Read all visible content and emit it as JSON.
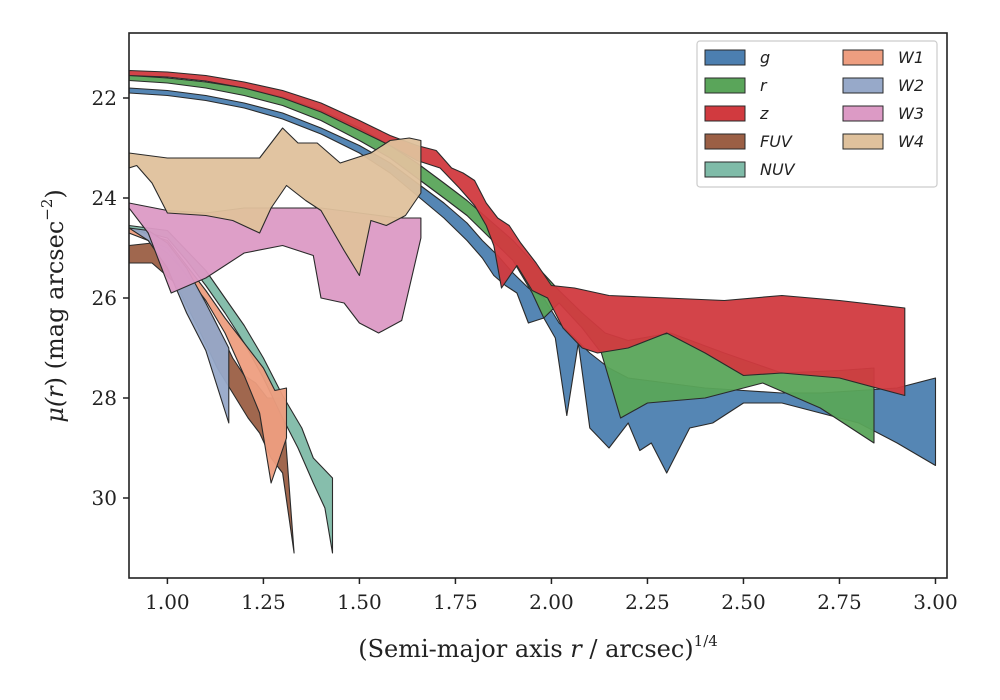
{
  "chart_data": {
    "type": "area",
    "xlabel_main": "(Semi-major axis ",
    "xlabel_var": "r",
    "xlabel_rest": " / arcsec)",
    "xlabel_exp": "1/4",
    "ylabel_main": "μ(",
    "ylabel_var": "r",
    "ylabel_rest": ") (mag arcsec",
    "ylabel_exp": "−2",
    "ylabel_close": ")",
    "xlim": [
      0.9,
      3.03
    ],
    "ylim": [
      31.6,
      20.7
    ],
    "y_inverted": true,
    "grid": false,
    "legend_position": "top-right",
    "legend_columns": 2,
    "xticks": [
      1.0,
      1.25,
      1.5,
      1.75,
      2.0,
      2.25,
      2.5,
      2.75,
      3.0
    ],
    "xtick_labels": [
      "1.00",
      "1.25",
      "1.50",
      "1.75",
      "2.00",
      "2.25",
      "2.50",
      "2.75",
      "3.00"
    ],
    "yticks": [
      22,
      24,
      26,
      28,
      30
    ],
    "ytick_labels": [
      "22",
      "24",
      "26",
      "28",
      "30"
    ],
    "series": [
      {
        "name": "g",
        "color": "#4c7fb0",
        "upper": [
          [
            0.9,
            21.8
          ],
          [
            1.0,
            21.85
          ],
          [
            1.1,
            21.95
          ],
          [
            1.2,
            22.1
          ],
          [
            1.3,
            22.3
          ],
          [
            1.4,
            22.6
          ],
          [
            1.5,
            22.95
          ],
          [
            1.58,
            23.3
          ],
          [
            1.65,
            23.7
          ],
          [
            1.72,
            24.1
          ],
          [
            1.78,
            24.5
          ],
          [
            1.82,
            24.85
          ],
          [
            1.86,
            25.15
          ],
          [
            1.9,
            25.5
          ],
          [
            1.94,
            25.8
          ],
          [
            1.98,
            26.0
          ],
          [
            2.02,
            26.5
          ],
          [
            2.06,
            26.8
          ],
          [
            2.1,
            27.1
          ],
          [
            2.15,
            27.4
          ],
          [
            2.2,
            27.6
          ],
          [
            2.3,
            27.7
          ],
          [
            2.4,
            27.8
          ],
          [
            2.5,
            27.85
          ],
          [
            2.6,
            27.9
          ],
          [
            2.7,
            27.9
          ],
          [
            2.8,
            27.85
          ],
          [
            2.9,
            27.8
          ],
          [
            3.0,
            27.6
          ]
        ],
        "lower": [
          [
            0.9,
            21.9
          ],
          [
            1.0,
            21.95
          ],
          [
            1.1,
            22.05
          ],
          [
            1.2,
            22.2
          ],
          [
            1.3,
            22.42
          ],
          [
            1.4,
            22.72
          ],
          [
            1.5,
            23.1
          ],
          [
            1.58,
            23.5
          ],
          [
            1.65,
            23.95
          ],
          [
            1.72,
            24.4
          ],
          [
            1.78,
            24.85
          ],
          [
            1.82,
            25.2
          ],
          [
            1.85,
            25.55
          ],
          [
            1.88,
            25.75
          ],
          [
            1.91,
            25.9
          ],
          [
            1.94,
            26.5
          ],
          [
            1.98,
            26.4
          ],
          [
            2.01,
            26.8
          ],
          [
            2.04,
            28.35
          ],
          [
            2.07,
            26.9
          ],
          [
            2.1,
            28.6
          ],
          [
            2.15,
            29.0
          ],
          [
            2.2,
            28.5
          ],
          [
            2.23,
            29.05
          ],
          [
            2.26,
            28.9
          ],
          [
            2.3,
            29.5
          ],
          [
            2.36,
            28.6
          ],
          [
            2.42,
            28.5
          ],
          [
            2.5,
            28.1
          ],
          [
            2.6,
            28.1
          ],
          [
            2.7,
            28.3
          ],
          [
            2.8,
            28.5
          ],
          [
            2.9,
            28.9
          ],
          [
            3.0,
            29.35
          ]
        ]
      },
      {
        "name": "r",
        "color": "#5aa55a",
        "upper": [
          [
            0.9,
            21.55
          ],
          [
            1.0,
            21.6
          ],
          [
            1.1,
            21.68
          ],
          [
            1.2,
            21.8
          ],
          [
            1.3,
            21.98
          ],
          [
            1.4,
            22.25
          ],
          [
            1.5,
            22.6
          ],
          [
            1.58,
            22.95
          ],
          [
            1.65,
            23.3
          ],
          [
            1.72,
            23.7
          ],
          [
            1.78,
            24.05
          ],
          [
            1.84,
            24.45
          ],
          [
            1.9,
            24.85
          ],
          [
            1.96,
            25.35
          ],
          [
            2.02,
            25.85
          ],
          [
            2.08,
            26.3
          ],
          [
            2.14,
            26.7
          ],
          [
            2.2,
            26.85
          ],
          [
            2.31,
            26.7
          ],
          [
            2.45,
            27.1
          ],
          [
            2.6,
            27.5
          ],
          [
            2.75,
            27.45
          ],
          [
            2.84,
            27.4
          ]
        ],
        "lower": [
          [
            0.9,
            21.65
          ],
          [
            1.0,
            21.7
          ],
          [
            1.1,
            21.8
          ],
          [
            1.2,
            21.95
          ],
          [
            1.3,
            22.15
          ],
          [
            1.4,
            22.45
          ],
          [
            1.5,
            22.85
          ],
          [
            1.58,
            23.2
          ],
          [
            1.65,
            23.6
          ],
          [
            1.72,
            24.0
          ],
          [
            1.78,
            24.35
          ],
          [
            1.84,
            24.8
          ],
          [
            1.9,
            25.25
          ],
          [
            1.95,
            25.9
          ],
          [
            1.98,
            26.4
          ],
          [
            2.02,
            26.1
          ],
          [
            2.08,
            26.6
          ],
          [
            2.13,
            27.1
          ],
          [
            2.18,
            28.4
          ],
          [
            2.25,
            28.1
          ],
          [
            2.4,
            28.0
          ],
          [
            2.55,
            27.7
          ],
          [
            2.7,
            28.2
          ],
          [
            2.84,
            28.9
          ]
        ]
      },
      {
        "name": "z",
        "color": "#d13a3f",
        "upper": [
          [
            0.9,
            21.45
          ],
          [
            1.0,
            21.48
          ],
          [
            1.1,
            21.55
          ],
          [
            1.2,
            21.68
          ],
          [
            1.3,
            21.85
          ],
          [
            1.4,
            22.1
          ],
          [
            1.5,
            22.45
          ],
          [
            1.58,
            22.75
          ],
          [
            1.65,
            22.95
          ],
          [
            1.7,
            23.05
          ],
          [
            1.74,
            23.4
          ],
          [
            1.77,
            23.5
          ],
          [
            1.8,
            23.65
          ],
          [
            1.83,
            24.1
          ],
          [
            1.86,
            24.4
          ],
          [
            1.89,
            24.55
          ],
          [
            1.92,
            24.9
          ],
          [
            1.96,
            25.3
          ],
          [
            2.0,
            25.75
          ],
          [
            2.06,
            25.8
          ],
          [
            2.15,
            25.95
          ],
          [
            2.3,
            26.0
          ],
          [
            2.45,
            26.05
          ],
          [
            2.6,
            25.95
          ],
          [
            2.75,
            26.05
          ],
          [
            2.92,
            26.2
          ]
        ],
        "lower": [
          [
            0.9,
            21.55
          ],
          [
            1.0,
            21.58
          ],
          [
            1.1,
            21.66
          ],
          [
            1.2,
            21.8
          ],
          [
            1.3,
            22.0
          ],
          [
            1.4,
            22.28
          ],
          [
            1.5,
            22.65
          ],
          [
            1.58,
            22.95
          ],
          [
            1.65,
            23.25
          ],
          [
            1.71,
            23.4
          ],
          [
            1.76,
            23.8
          ],
          [
            1.8,
            24.15
          ],
          [
            1.83,
            24.55
          ],
          [
            1.85,
            24.95
          ],
          [
            1.87,
            25.8
          ],
          [
            1.91,
            25.35
          ],
          [
            1.95,
            25.85
          ],
          [
            1.99,
            26.0
          ],
          [
            2.03,
            26.6
          ],
          [
            2.08,
            27.0
          ],
          [
            2.12,
            27.1
          ],
          [
            2.2,
            27.0
          ],
          [
            2.3,
            26.7
          ],
          [
            2.4,
            27.1
          ],
          [
            2.5,
            27.55
          ],
          [
            2.6,
            27.5
          ],
          [
            2.75,
            27.6
          ],
          [
            2.92,
            27.95
          ]
        ]
      },
      {
        "name": "FUV",
        "color": "#9b5f45",
        "upper": [
          [
            0.9,
            24.95
          ],
          [
            0.96,
            24.9
          ],
          [
            1.0,
            25.1
          ],
          [
            1.06,
            25.6
          ],
          [
            1.12,
            26.4
          ],
          [
            1.17,
            27.2
          ],
          [
            1.2,
            27.55
          ],
          [
            1.23,
            27.7
          ],
          [
            1.26,
            28.0
          ],
          [
            1.3,
            28.0
          ],
          [
            1.33,
            31.1
          ]
        ],
        "lower": [
          [
            0.9,
            25.3
          ],
          [
            0.96,
            25.3
          ],
          [
            1.02,
            25.7
          ],
          [
            1.08,
            26.6
          ],
          [
            1.13,
            27.4
          ],
          [
            1.17,
            27.9
          ],
          [
            1.21,
            28.4
          ],
          [
            1.24,
            28.7
          ],
          [
            1.27,
            29.2
          ],
          [
            1.3,
            29.5
          ],
          [
            1.33,
            31.1
          ]
        ]
      },
      {
        "name": "NUV",
        "color": "#7fbba8",
        "upper": [
          [
            0.9,
            24.55
          ],
          [
            1.0,
            24.65
          ],
          [
            1.05,
            25.05
          ],
          [
            1.1,
            25.45
          ],
          [
            1.15,
            26.0
          ],
          [
            1.2,
            26.55
          ],
          [
            1.25,
            27.2
          ],
          [
            1.3,
            27.95
          ],
          [
            1.35,
            28.6
          ],
          [
            1.38,
            29.2
          ],
          [
            1.43,
            29.6
          ],
          [
            1.43,
            31.1
          ]
        ],
        "lower": [
          [
            0.9,
            24.6
          ],
          [
            1.0,
            24.8
          ],
          [
            1.05,
            25.25
          ],
          [
            1.1,
            25.75
          ],
          [
            1.15,
            26.3
          ],
          [
            1.2,
            26.9
          ],
          [
            1.25,
            27.6
          ],
          [
            1.3,
            28.4
          ],
          [
            1.34,
            29.0
          ],
          [
            1.38,
            29.7
          ],
          [
            1.41,
            30.2
          ],
          [
            1.43,
            31.1
          ]
        ]
      },
      {
        "name": "W1",
        "color": "#ee9e80",
        "upper": [
          [
            0.9,
            24.6
          ],
          [
            1.0,
            24.85
          ],
          [
            1.05,
            25.35
          ],
          [
            1.1,
            25.85
          ],
          [
            1.15,
            26.4
          ],
          [
            1.2,
            26.9
          ],
          [
            1.25,
            27.4
          ],
          [
            1.28,
            27.85
          ],
          [
            1.31,
            27.8
          ]
        ],
        "lower": [
          [
            0.9,
            24.7
          ],
          [
            1.0,
            25.0
          ],
          [
            1.05,
            25.55
          ],
          [
            1.1,
            26.05
          ],
          [
            1.15,
            26.7
          ],
          [
            1.2,
            27.55
          ],
          [
            1.24,
            28.3
          ],
          [
            1.27,
            29.7
          ],
          [
            1.31,
            28.8
          ]
        ]
      },
      {
        "name": "W2",
        "color": "#97a9c9",
        "upper": [
          [
            0.9,
            24.6
          ],
          [
            0.95,
            24.65
          ],
          [
            1.0,
            24.9
          ],
          [
            1.05,
            25.4
          ],
          [
            1.1,
            26.1
          ],
          [
            1.16,
            27.0
          ],
          [
            1.16,
            27.0
          ]
        ],
        "lower": [
          [
            0.9,
            24.6
          ],
          [
            0.95,
            24.85
          ],
          [
            1.0,
            25.4
          ],
          [
            1.05,
            26.3
          ],
          [
            1.1,
            27.05
          ],
          [
            1.16,
            28.5
          ],
          [
            1.16,
            28.5
          ]
        ]
      },
      {
        "name": "W3",
        "color": "#dc9ac5",
        "upper": [
          [
            0.9,
            24.1
          ],
          [
            1.0,
            24.25
          ],
          [
            1.1,
            24.3
          ],
          [
            1.2,
            24.2
          ],
          [
            1.3,
            24.2
          ],
          [
            1.4,
            24.2
          ],
          [
            1.5,
            24.3
          ],
          [
            1.6,
            24.4
          ],
          [
            1.66,
            24.4
          ]
        ],
        "lower": [
          [
            0.9,
            24.2
          ],
          [
            0.95,
            24.7
          ],
          [
            1.01,
            25.9
          ],
          [
            1.1,
            25.6
          ],
          [
            1.2,
            25.1
          ],
          [
            1.3,
            24.95
          ],
          [
            1.38,
            25.15
          ],
          [
            1.4,
            26.0
          ],
          [
            1.46,
            26.1
          ],
          [
            1.5,
            26.5
          ],
          [
            1.55,
            26.7
          ],
          [
            1.61,
            26.45
          ],
          [
            1.66,
            24.8
          ]
        ]
      },
      {
        "name": "W4",
        "color": "#dfc19c",
        "upper": [
          [
            0.9,
            23.1
          ],
          [
            1.0,
            23.2
          ],
          [
            1.1,
            23.2
          ],
          [
            1.24,
            23.2
          ],
          [
            1.3,
            22.6
          ],
          [
            1.34,
            22.9
          ],
          [
            1.39,
            22.9
          ],
          [
            1.45,
            23.3
          ],
          [
            1.53,
            23.1
          ],
          [
            1.58,
            22.85
          ],
          [
            1.63,
            22.8
          ],
          [
            1.66,
            22.85
          ]
        ],
        "lower": [
          [
            0.9,
            23.4
          ],
          [
            0.92,
            23.35
          ],
          [
            0.96,
            23.7
          ],
          [
            1.0,
            24.3
          ],
          [
            1.1,
            24.35
          ],
          [
            1.17,
            24.45
          ],
          [
            1.24,
            24.7
          ],
          [
            1.27,
            24.2
          ],
          [
            1.31,
            23.75
          ],
          [
            1.36,
            24.05
          ],
          [
            1.4,
            24.25
          ],
          [
            1.46,
            25.05
          ],
          [
            1.5,
            25.55
          ],
          [
            1.53,
            24.45
          ],
          [
            1.57,
            24.55
          ],
          [
            1.62,
            24.35
          ],
          [
            1.66,
            23.9
          ]
        ]
      }
    ]
  }
}
